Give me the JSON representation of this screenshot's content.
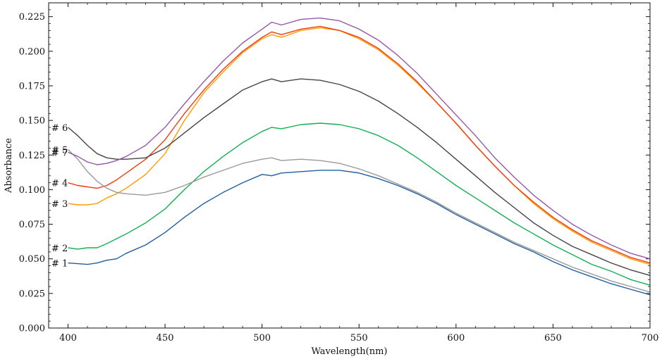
{
  "chart_data": {
    "type": "line",
    "title": "",
    "xlabel": "Wavelength(nm)",
    "ylabel": "Absorbance",
    "xlim": [
      390,
      700
    ],
    "ylim": [
      0,
      0.235
    ],
    "xticks": [
      400,
      450,
      500,
      550,
      600,
      650,
      700
    ],
    "xtick_labels": [
      "400",
      "450",
      "500",
      "550",
      "600",
      "650",
      "700"
    ],
    "yticks": [
      0,
      0.025,
      0.05,
      0.075,
      0.1,
      0.125,
      0.15,
      0.175,
      0.2,
      0.225
    ],
    "ytick_labels": [
      "0.000",
      "0.025",
      "0.050",
      "0.075",
      "0.100",
      "0.125",
      "0.150",
      "0.175",
      "0.200",
      "0.225"
    ],
    "grid": false,
    "legend": "none",
    "series": [
      {
        "label": "# 1",
        "color": "#1f5fa0",
        "points": [
          [
            400,
            0.047
          ],
          [
            410,
            0.046
          ],
          [
            415,
            0.047
          ],
          [
            420,
            0.049
          ],
          [
            425,
            0.05
          ],
          [
            430,
            0.054
          ],
          [
            440,
            0.06
          ],
          [
            450,
            0.069
          ],
          [
            460,
            0.08
          ],
          [
            470,
            0.09
          ],
          [
            480,
            0.098
          ],
          [
            490,
            0.105
          ],
          [
            500,
            0.111
          ],
          [
            505,
            0.11
          ],
          [
            510,
            0.112
          ],
          [
            520,
            0.113
          ],
          [
            530,
            0.114
          ],
          [
            540,
            0.114
          ],
          [
            550,
            0.112
          ],
          [
            560,
            0.108
          ],
          [
            570,
            0.103
          ],
          [
            580,
            0.097
          ],
          [
            590,
            0.09
          ],
          [
            600,
            0.082
          ],
          [
            610,
            0.075
          ],
          [
            620,
            0.068
          ],
          [
            630,
            0.061
          ],
          [
            640,
            0.055
          ],
          [
            650,
            0.048
          ],
          [
            660,
            0.042
          ],
          [
            670,
            0.037
          ],
          [
            680,
            0.032
          ],
          [
            690,
            0.028
          ],
          [
            700,
            0.024
          ]
        ]
      },
      {
        "label": "# 2",
        "color": "#12b050",
        "points": [
          [
            400,
            0.058
          ],
          [
            405,
            0.057
          ],
          [
            410,
            0.058
          ],
          [
            415,
            0.058
          ],
          [
            420,
            0.061
          ],
          [
            430,
            0.068
          ],
          [
            440,
            0.076
          ],
          [
            450,
            0.086
          ],
          [
            460,
            0.1
          ],
          [
            470,
            0.113
          ],
          [
            480,
            0.124
          ],
          [
            490,
            0.134
          ],
          [
            500,
            0.142
          ],
          [
            505,
            0.145
          ],
          [
            510,
            0.144
          ],
          [
            520,
            0.147
          ],
          [
            530,
            0.148
          ],
          [
            540,
            0.147
          ],
          [
            550,
            0.144
          ],
          [
            560,
            0.139
          ],
          [
            570,
            0.132
          ],
          [
            580,
            0.123
          ],
          [
            590,
            0.113
          ],
          [
            600,
            0.103
          ],
          [
            610,
            0.094
          ],
          [
            620,
            0.085
          ],
          [
            630,
            0.076
          ],
          [
            640,
            0.068
          ],
          [
            650,
            0.06
          ],
          [
            660,
            0.053
          ],
          [
            670,
            0.046
          ],
          [
            680,
            0.041
          ],
          [
            690,
            0.035
          ],
          [
            700,
            0.031
          ]
        ]
      },
      {
        "label": "# 3",
        "color": "#ff9a00",
        "points": [
          [
            400,
            0.09
          ],
          [
            405,
            0.089
          ],
          [
            410,
            0.089
          ],
          [
            415,
            0.09
          ],
          [
            420,
            0.094
          ],
          [
            425,
            0.097
          ],
          [
            430,
            0.101
          ],
          [
            440,
            0.111
          ],
          [
            450,
            0.126
          ],
          [
            460,
            0.15
          ],
          [
            470,
            0.17
          ],
          [
            480,
            0.185
          ],
          [
            490,
            0.199
          ],
          [
            500,
            0.209
          ],
          [
            505,
            0.212
          ],
          [
            510,
            0.21
          ],
          [
            520,
            0.215
          ],
          [
            530,
            0.217
          ],
          [
            540,
            0.215
          ],
          [
            550,
            0.209
          ],
          [
            560,
            0.201
          ],
          [
            570,
            0.19
          ],
          [
            580,
            0.177
          ],
          [
            590,
            0.163
          ],
          [
            600,
            0.148
          ],
          [
            610,
            0.132
          ],
          [
            620,
            0.117
          ],
          [
            630,
            0.103
          ],
          [
            640,
            0.09
          ],
          [
            650,
            0.079
          ],
          [
            660,
            0.07
          ],
          [
            670,
            0.062
          ],
          [
            680,
            0.056
          ],
          [
            690,
            0.05
          ],
          [
            700,
            0.046
          ]
        ]
      },
      {
        "label": "# 4",
        "color": "#ee3d0d",
        "points": [
          [
            400,
            0.105
          ],
          [
            405,
            0.103
          ],
          [
            410,
            0.102
          ],
          [
            415,
            0.101
          ],
          [
            420,
            0.103
          ],
          [
            425,
            0.107
          ],
          [
            430,
            0.112
          ],
          [
            440,
            0.122
          ],
          [
            450,
            0.136
          ],
          [
            460,
            0.155
          ],
          [
            470,
            0.172
          ],
          [
            480,
            0.187
          ],
          [
            490,
            0.2
          ],
          [
            500,
            0.21
          ],
          [
            505,
            0.214
          ],
          [
            510,
            0.212
          ],
          [
            520,
            0.216
          ],
          [
            530,
            0.218
          ],
          [
            540,
            0.215
          ],
          [
            550,
            0.21
          ],
          [
            560,
            0.202
          ],
          [
            570,
            0.191
          ],
          [
            580,
            0.178
          ],
          [
            590,
            0.163
          ],
          [
            600,
            0.148
          ],
          [
            610,
            0.132
          ],
          [
            620,
            0.117
          ],
          [
            630,
            0.103
          ],
          [
            640,
            0.091
          ],
          [
            650,
            0.08
          ],
          [
            660,
            0.071
          ],
          [
            670,
            0.063
          ],
          [
            680,
            0.057
          ],
          [
            690,
            0.051
          ],
          [
            700,
            0.047
          ]
        ]
      },
      {
        "label": "# 5",
        "color": "#9a9a9a",
        "points": [
          [
            400,
            0.129
          ],
          [
            405,
            0.122
          ],
          [
            410,
            0.113
          ],
          [
            415,
            0.106
          ],
          [
            420,
            0.101
          ],
          [
            425,
            0.098
          ],
          [
            430,
            0.097
          ],
          [
            440,
            0.096
          ],
          [
            450,
            0.098
          ],
          [
            460,
            0.103
          ],
          [
            470,
            0.109
          ],
          [
            480,
            0.114
          ],
          [
            490,
            0.119
          ],
          [
            500,
            0.122
          ],
          [
            505,
            0.123
          ],
          [
            510,
            0.121
          ],
          [
            520,
            0.122
          ],
          [
            530,
            0.121
          ],
          [
            540,
            0.119
          ],
          [
            550,
            0.115
          ],
          [
            560,
            0.11
          ],
          [
            570,
            0.104
          ],
          [
            580,
            0.098
          ],
          [
            590,
            0.091
          ],
          [
            600,
            0.083
          ],
          [
            610,
            0.076
          ],
          [
            620,
            0.069
          ],
          [
            630,
            0.062
          ],
          [
            640,
            0.056
          ],
          [
            650,
            0.05
          ],
          [
            660,
            0.044
          ],
          [
            670,
            0.039
          ],
          [
            680,
            0.034
          ],
          [
            690,
            0.03
          ],
          [
            700,
            0.026
          ]
        ]
      },
      {
        "label": "# 6",
        "color": "#454545",
        "points": [
          [
            400,
            0.145
          ],
          [
            405,
            0.139
          ],
          [
            410,
            0.132
          ],
          [
            415,
            0.126
          ],
          [
            420,
            0.123
          ],
          [
            425,
            0.122
          ],
          [
            430,
            0.122
          ],
          [
            440,
            0.123
          ],
          [
            450,
            0.13
          ],
          [
            460,
            0.141
          ],
          [
            470,
            0.152
          ],
          [
            480,
            0.162
          ],
          [
            490,
            0.172
          ],
          [
            500,
            0.178
          ],
          [
            505,
            0.18
          ],
          [
            510,
            0.178
          ],
          [
            520,
            0.18
          ],
          [
            530,
            0.179
          ],
          [
            540,
            0.176
          ],
          [
            550,
            0.171
          ],
          [
            560,
            0.164
          ],
          [
            570,
            0.155
          ],
          [
            580,
            0.145
          ],
          [
            590,
            0.134
          ],
          [
            600,
            0.122
          ],
          [
            610,
            0.11
          ],
          [
            620,
            0.098
          ],
          [
            630,
            0.087
          ],
          [
            640,
            0.076
          ],
          [
            650,
            0.067
          ],
          [
            660,
            0.059
          ],
          [
            670,
            0.053
          ],
          [
            680,
            0.047
          ],
          [
            690,
            0.042
          ],
          [
            700,
            0.038
          ]
        ]
      },
      {
        "label": "# 7",
        "color": "#9658a8",
        "points": [
          [
            400,
            0.127
          ],
          [
            405,
            0.124
          ],
          [
            410,
            0.12
          ],
          [
            415,
            0.118
          ],
          [
            420,
            0.119
          ],
          [
            425,
            0.121
          ],
          [
            430,
            0.124
          ],
          [
            440,
            0.132
          ],
          [
            450,
            0.145
          ],
          [
            460,
            0.162
          ],
          [
            470,
            0.178
          ],
          [
            480,
            0.193
          ],
          [
            490,
            0.206
          ],
          [
            500,
            0.216
          ],
          [
            505,
            0.221
          ],
          [
            510,
            0.219
          ],
          [
            520,
            0.223
          ],
          [
            530,
            0.224
          ],
          [
            540,
            0.222
          ],
          [
            550,
            0.216
          ],
          [
            560,
            0.208
          ],
          [
            570,
            0.197
          ],
          [
            580,
            0.184
          ],
          [
            590,
            0.169
          ],
          [
            600,
            0.154
          ],
          [
            610,
            0.139
          ],
          [
            620,
            0.123
          ],
          [
            630,
            0.109
          ],
          [
            640,
            0.096
          ],
          [
            650,
            0.085
          ],
          [
            660,
            0.075
          ],
          [
            670,
            0.067
          ],
          [
            680,
            0.06
          ],
          [
            690,
            0.054
          ],
          [
            700,
            0.05
          ]
        ]
      }
    ]
  }
}
